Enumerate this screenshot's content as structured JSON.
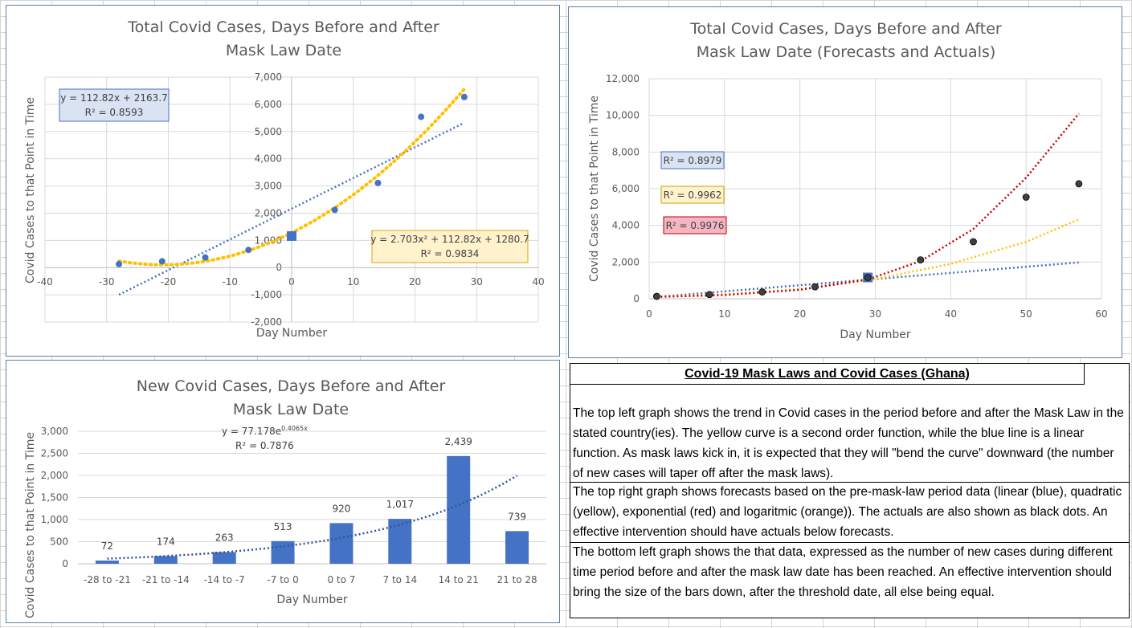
{
  "chart_data": [
    {
      "type": "scatter",
      "title": [
        "Total Covid Cases, Days Before and After",
        "Mask Law Date"
      ],
      "xlabel": "Day Number",
      "ylabel": "Covid Cases to that Point in Time",
      "xlim": [
        -40,
        40
      ],
      "ylim": [
        -2000,
        7000
      ],
      "xticks": [
        "-40",
        "-30",
        "-20",
        "-10",
        "0",
        "10",
        "20",
        "30",
        "40"
      ],
      "yticks": [
        "-2,000",
        "-1,000",
        "0",
        "1,000",
        "2,000",
        "3,000",
        "4,000",
        "5,000",
        "6,000",
        "7,000"
      ],
      "grid": true,
      "points": {
        "x": [
          -28,
          -21,
          -14,
          -7,
          0,
          7,
          14,
          21,
          28
        ],
        "y": [
          130,
          230,
          370,
          650,
          1160,
          2120,
          3110,
          5540,
          6270
        ]
      },
      "highlight_point": {
        "x": 0,
        "y": 1160
      },
      "trendlines": [
        {
          "type": "linear",
          "color": "#4472c4",
          "slope": 112.82,
          "intercept": 2163.7,
          "equation": "y = 112.82x + 2163.7",
          "r2": "R² = 0.8593"
        },
        {
          "type": "poly2",
          "color": "#ffc000",
          "a": 2.703,
          "b": 112.82,
          "c": 1280.7,
          "equation": "y = 2.703x² + 112.82x + 1280.7",
          "r2": "R² = 0.9834"
        }
      ]
    },
    {
      "type": "scatter",
      "title": [
        "Total Covid Cases, Days Before and After",
        "Mask Law Date (Forecasts and Actuals)"
      ],
      "xlabel": "Day Number",
      "ylabel": "Covid Cases to that Point in Time",
      "xlim": [
        0,
        60
      ],
      "ylim": [
        0,
        12000
      ],
      "xticks": [
        "0",
        "10",
        "20",
        "30",
        "40",
        "50",
        "60"
      ],
      "yticks": [
        "0",
        "2,000",
        "4,000",
        "6,000",
        "8,000",
        "10,000",
        "12,000"
      ],
      "grid": true,
      "points": {
        "x": [
          1,
          8,
          15,
          22,
          29,
          36,
          43,
          50,
          57
        ],
        "y": [
          130,
          230,
          370,
          650,
          1160,
          2120,
          3110,
          5540,
          6270
        ]
      },
      "highlight_point": {
        "x": 29,
        "y": 1160
      },
      "forecast_lines": [
        {
          "color": "#4472c4",
          "x": [
            1,
            57
          ],
          "y": [
            100,
            1980
          ]
        },
        {
          "color": "#ffc000",
          "x": [
            1,
            10,
            20,
            29,
            40,
            50,
            57
          ],
          "y": [
            100,
            240,
            520,
            1000,
            1900,
            3100,
            4330
          ]
        },
        {
          "color": "#c00000",
          "x": [
            1,
            10,
            20,
            29,
            36,
            43,
            50,
            57
          ],
          "y": [
            100,
            200,
            490,
            1050,
            2050,
            3800,
            6600,
            10100
          ]
        }
      ],
      "r2_labels": [
        {
          "text": "R² = 0.8979",
          "fill": "#dae3f3",
          "stroke": "#4472c4"
        },
        {
          "text": "R² = 0.9962",
          "fill": "#fff2cc",
          "stroke": "#c9a300"
        },
        {
          "text": "R² = 0.9976",
          "fill": "#f4b6c2",
          "stroke": "#c00000"
        }
      ]
    },
    {
      "type": "bar",
      "title": [
        "New Covid Cases, Days Before and After",
        "Mask Law Date"
      ],
      "xlabel": "Day Number",
      "ylabel": "Covid Cases to that Point in Time",
      "ylim": [
        0,
        3000
      ],
      "yticks": [
        "0",
        "500",
        "1,000",
        "1,500",
        "2,000",
        "2,500",
        "3,000"
      ],
      "categories": [
        "-28 to -21",
        "-21 to -14",
        "-14 to -7",
        "-7 to 0",
        "0 to 7",
        "7 to 14",
        "14 to 21",
        "21 to 28"
      ],
      "values": [
        72,
        174,
        263,
        513,
        920,
        1017,
        2439,
        739
      ],
      "value_labels": [
        "72",
        "174",
        "263",
        "513",
        "920",
        "1,017",
        "2,439",
        "739"
      ],
      "bar_color": "#4472c4",
      "trendline": {
        "type": "exponential",
        "a": 77.178,
        "b": 0.4065,
        "equation_base": "y = 77.178e",
        "equation_exp": "0.4065x",
        "r2": "R² = 0.7876"
      }
    }
  ],
  "text_panel": {
    "title": "Covid-19 Mask Laws and Covid Cases (Ghana)",
    "paragraphs": [
      "The top left graph shows the trend in Covid cases in the period before and after the Mask Law in the stated country(ies).  The yellow curve is a second order function, while the blue line is a linear function.  As mask laws kick in, it is expected that they will \"bend the curve\" downward (the number of new cases will taper off after the mask laws).",
      "The top right graph shows forecasts based on the pre-mask-law period data (linear (blue), quadratic (yellow), exponential (red) and logaritmic (orange)).  The actuals are also shown as black dots.  An effective intervention should have actuals below forecasts.",
      "The bottom left graph shows the that data, expressed as the number of new cases during different time period before and after the mask law date has been reached.  An effective intervention should bring the size of the bars down, after the threshold date, all else being equal."
    ]
  }
}
